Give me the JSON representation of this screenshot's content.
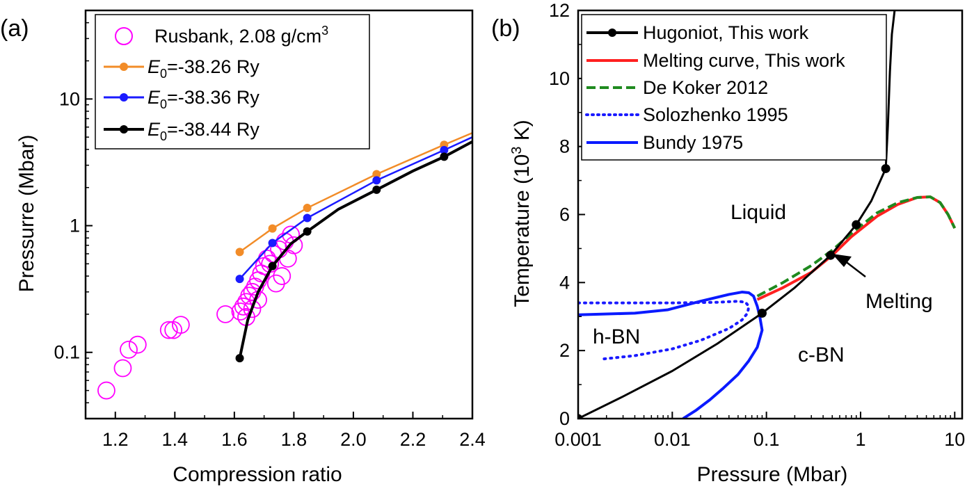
{
  "chart_data": [
    {
      "panel_label": "(a)",
      "type": "line",
      "xlabel": "Compression ratio",
      "ylabel": "Pressurre (Mbar)",
      "xlim": [
        1.1,
        2.4
      ],
      "ylim": [
        0.03,
        50
      ],
      "yscale": "log",
      "grid": false,
      "legend_position": "top-left",
      "xticks": [
        "1.2",
        "1.4",
        "1.6",
        "1.8",
        "2.0",
        "2.2",
        "2.4"
      ],
      "yticks": [
        "0.1",
        "1",
        "10"
      ],
      "legend": [
        {
          "text": "Rusbank, 2.08 g/cm",
          "sup": "3"
        },
        {
          "prefix": "E",
          "sub": "0",
          "text": "=-38.26 Ry"
        },
        {
          "prefix": "E",
          "sub": "0",
          "text": "=-38.36 Ry"
        },
        {
          "prefix": "E",
          "sub": "0",
          "text": "=-38.44 Ry"
        }
      ],
      "series": [
        {
          "name": "Rusbank, 2.08 g/cm3",
          "color": "#ff00ff",
          "style": "open-circle",
          "x": [
            1.17,
            1.225,
            1.245,
            1.275,
            1.38,
            1.395,
            1.42,
            1.57,
            1.62,
            1.63,
            1.64,
            1.65,
            1.66,
            1.67,
            1.68,
            1.69,
            1.7,
            1.71,
            1.72,
            1.73,
            1.74,
            1.75,
            1.76,
            1.77,
            1.78,
            1.79,
            1.8,
            1.64,
            1.66,
            1.68
          ],
          "y": [
            0.05,
            0.075,
            0.105,
            0.115,
            0.15,
            0.15,
            0.165,
            0.2,
            0.21,
            0.23,
            0.25,
            0.28,
            0.3,
            0.33,
            0.37,
            0.42,
            0.48,
            0.55,
            0.5,
            0.6,
            0.35,
            0.65,
            0.4,
            0.75,
            0.55,
            0.85,
            0.7,
            0.19,
            0.22,
            0.26
          ]
        },
        {
          "name": "E0=-38.26 Ry",
          "color": "#f28c28",
          "style": "line-dot",
          "x": [
            1.618,
            1.728,
            1.845,
            2.078,
            2.305,
            2.4
          ],
          "y": [
            0.62,
            0.95,
            1.38,
            2.55,
            4.35,
            5.4
          ],
          "markers": [
            1,
            1,
            1,
            1,
            1,
            0
          ]
        },
        {
          "name": "E0=-38.36 Ry",
          "color": "#1a1aff",
          "style": "line-dot",
          "x": [
            1.618,
            1.728,
            1.845,
            2.078,
            2.305,
            2.4
          ],
          "y": [
            0.38,
            0.73,
            1.15,
            2.28,
            3.95,
            5.0
          ],
          "markers": [
            1,
            1,
            1,
            1,
            1,
            0
          ]
        },
        {
          "name": "E0=-38.44 Ry",
          "color": "#000000",
          "style": "line-dot",
          "x": [
            1.618,
            1.645,
            1.68,
            1.728,
            1.79,
            1.845,
            1.95,
            2.078,
            2.2,
            2.305,
            2.4
          ],
          "y": [
            0.09,
            0.18,
            0.3,
            0.48,
            0.72,
            0.9,
            1.35,
            1.92,
            2.7,
            3.5,
            4.6
          ],
          "markers": [
            1,
            0,
            0,
            1,
            0,
            1,
            0,
            1,
            0,
            1,
            0
          ]
        }
      ]
    },
    {
      "panel_label": "(b)",
      "type": "line",
      "xlabel": "Pressure (Mbar)",
      "ylabel": "Temperature (10",
      "ylabel_sup": "3",
      "ylabel_tail": " K)",
      "xlim": [
        0.001,
        12
      ],
      "ylim": [
        0,
        12
      ],
      "xscale": "log",
      "grid": false,
      "legend_position": "top-left",
      "xticks": [
        "0.001",
        "0.01",
        "0.1",
        "1",
        "10"
      ],
      "yticks": [
        "0",
        "2",
        "4",
        "6",
        "8",
        "10",
        "12"
      ],
      "legend": [
        "Hugoniot, This work",
        "Melting curve, This work",
        "De Koker 2012",
        "Solozhenko 1995",
        "Bundy 1975"
      ],
      "annotations": {
        "liquid": "Liquid",
        "melting": "Melting",
        "hbn": "h-BN",
        "cbn": "c-BN"
      },
      "series": [
        {
          "name": "Hugoniot, This work",
          "color": "#000000",
          "style": "line-dot",
          "x": [
            0.001,
            0.003,
            0.01,
            0.03,
            0.09,
            0.2,
            0.48,
            0.9,
            1.3,
            1.85,
            1.95,
            2.05,
            2.15,
            2.3
          ],
          "y": [
            0,
            0.65,
            1.4,
            2.2,
            3.1,
            3.85,
            4.8,
            5.7,
            6.4,
            7.35,
            8.6,
            10.2,
            11.3,
            12.0
          ],
          "markers": [
            1,
            0,
            0,
            0,
            1,
            0,
            1,
            1,
            0,
            1,
            0,
            0,
            0,
            0
          ]
        },
        {
          "name": "Melting curve, This work",
          "color": "#ff2020",
          "style": "solid",
          "x": [
            0.08,
            0.15,
            0.3,
            0.5,
            0.8,
            1.5,
            2.5,
            4.0,
            5.5,
            7.0,
            8.5,
            10.0
          ],
          "y": [
            3.5,
            3.85,
            4.3,
            4.8,
            5.35,
            5.95,
            6.3,
            6.5,
            6.52,
            6.35,
            6.0,
            5.6
          ]
        },
        {
          "name": "De Koker 2012",
          "color": "#1f8a1f",
          "style": "dashed",
          "x": [
            0.08,
            0.15,
            0.3,
            0.5,
            0.8,
            1.5,
            2.5,
            4.0,
            5.5,
            7.0,
            8.5,
            10.0
          ],
          "y": [
            3.6,
            4.0,
            4.5,
            4.95,
            5.45,
            6.05,
            6.35,
            6.5,
            6.52,
            6.35,
            6.0,
            5.6
          ]
        },
        {
          "name": "Solozhenko 1995",
          "color": "#1a1aff",
          "style": "dotted",
          "x": [
            0.001,
            0.003,
            0.01,
            0.03,
            0.05,
            0.06,
            0.065,
            0.063,
            0.055,
            0.04,
            0.02,
            0.01,
            0.004,
            0.0018
          ],
          "y": [
            3.4,
            3.4,
            3.4,
            3.42,
            3.45,
            3.42,
            3.3,
            3.1,
            2.9,
            2.65,
            2.3,
            2.05,
            1.85,
            1.75
          ]
        },
        {
          "name": "Bundy 1975",
          "color": "#0a1aff",
          "style": "solid",
          "x": [
            0.001,
            0.004,
            0.009,
            0.02,
            0.04,
            0.055,
            0.065,
            0.073,
            0.08,
            0.085,
            0.09,
            0.08,
            0.065,
            0.05,
            0.035,
            0.025,
            0.018,
            0.013
          ],
          "y": [
            3.05,
            3.1,
            3.2,
            3.45,
            3.65,
            3.72,
            3.7,
            3.6,
            3.3,
            3.0,
            2.6,
            2.1,
            1.7,
            1.3,
            0.9,
            0.55,
            0.25,
            0.0
          ]
        }
      ]
    }
  ]
}
